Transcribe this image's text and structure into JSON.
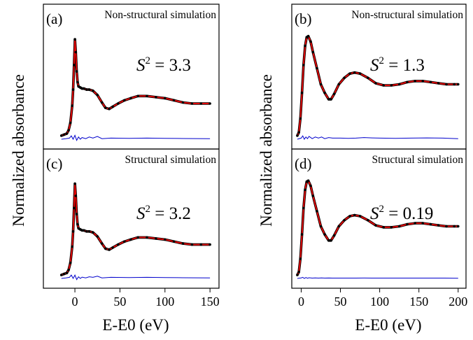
{
  "figure": {
    "ylabel": "Normalized absorbance",
    "xlabel": "E-E0 (eV)"
  },
  "colors": {
    "experiment": "#000000",
    "fit": "#e00000",
    "residual": "#0000cc",
    "axes": "#000000"
  },
  "chart_data": [
    {
      "type": "line",
      "panel_label": "(a)",
      "title": "Non-structural simulation",
      "annotation": {
        "symbol": "S",
        "superscript": "2",
        "text": " = 3.3"
      },
      "xlim": [
        -35,
        160
      ],
      "ylim": [
        0,
        1
      ],
      "xticks": [
        0,
        50,
        100,
        150
      ],
      "series": [
        {
          "style": "dots",
          "x": [
            -15,
            -12,
            -9,
            -7,
            -5,
            -3,
            -2,
            -1,
            0,
            1,
            2,
            3,
            4,
            6,
            8,
            10,
            13,
            16,
            20,
            25,
            30,
            34,
            38,
            42,
            48,
            55,
            62,
            70,
            80,
            90,
            100,
            110,
            120,
            130,
            140,
            150
          ],
          "y": [
            0.02,
            0.03,
            0.04,
            0.07,
            0.14,
            0.3,
            0.45,
            0.68,
            0.92,
            0.8,
            0.62,
            0.52,
            0.48,
            0.47,
            0.46,
            0.46,
            0.45,
            0.45,
            0.44,
            0.4,
            0.33,
            0.28,
            0.27,
            0.29,
            0.32,
            0.35,
            0.37,
            0.39,
            0.39,
            0.38,
            0.37,
            0.35,
            0.33,
            0.32,
            0.32,
            0.32
          ]
        },
        {
          "style": "line",
          "x": [
            -15,
            -12,
            -9,
            -7,
            -5,
            -3,
            -2,
            -1,
            0,
            1,
            2,
            3,
            4,
            6,
            8,
            10,
            13,
            16,
            20,
            25,
            30,
            34,
            38,
            42,
            48,
            55,
            62,
            70,
            80,
            90,
            100,
            110,
            120,
            130,
            140,
            150
          ],
          "y": [
            0.02,
            0.03,
            0.04,
            0.07,
            0.14,
            0.3,
            0.45,
            0.68,
            0.92,
            0.8,
            0.62,
            0.52,
            0.48,
            0.47,
            0.46,
            0.46,
            0.45,
            0.45,
            0.44,
            0.4,
            0.33,
            0.28,
            0.27,
            0.29,
            0.32,
            0.35,
            0.37,
            0.39,
            0.39,
            0.38,
            0.37,
            0.35,
            0.33,
            0.32,
            0.32,
            0.32
          ]
        },
        {
          "style": "residual",
          "x": [
            -15,
            -10,
            -6,
            -4,
            -2,
            0,
            2,
            4,
            6,
            8,
            12,
            16,
            20,
            25,
            30,
            40,
            60,
            80,
            100,
            120,
            150
          ],
          "y": [
            0.0,
            0.005,
            0.01,
            0.03,
            0.0,
            0.035,
            -0.01,
            0.02,
            0.0,
            0.015,
            0.005,
            0.02,
            0.01,
            0.025,
            0.005,
            0.01,
            0.008,
            0.01,
            0.008,
            0.006,
            0.005
          ]
        }
      ]
    },
    {
      "type": "line",
      "panel_label": "(b)",
      "title": "Non-structural simulation",
      "annotation": {
        "symbol": "S",
        "superscript": "2",
        "text": " = 1.3"
      },
      "xlim": [
        -12,
        210
      ],
      "ylim": [
        0,
        1
      ],
      "xticks": [
        0,
        50,
        100,
        150,
        200
      ],
      "series": [
        {
          "style": "dots",
          "x": [
            -5,
            -3,
            -1,
            1,
            3,
            5,
            7,
            9,
            12,
            15,
            20,
            25,
            30,
            35,
            38,
            42,
            48,
            55,
            62,
            68,
            75,
            85,
            95,
            105,
            115,
            125,
            135,
            145,
            155,
            165,
            175,
            185,
            195,
            200
          ],
          "y": [
            0.02,
            0.05,
            0.18,
            0.42,
            0.68,
            0.86,
            0.94,
            0.95,
            0.9,
            0.8,
            0.65,
            0.5,
            0.42,
            0.36,
            0.36,
            0.41,
            0.5,
            0.56,
            0.6,
            0.61,
            0.6,
            0.56,
            0.51,
            0.49,
            0.49,
            0.5,
            0.52,
            0.53,
            0.53,
            0.52,
            0.51,
            0.5,
            0.5,
            0.5
          ]
        },
        {
          "style": "line",
          "x": [
            -5,
            -3,
            -1,
            1,
            3,
            5,
            7,
            9,
            12,
            15,
            20,
            25,
            30,
            35,
            38,
            42,
            48,
            55,
            62,
            68,
            75,
            85,
            95,
            105,
            115,
            125,
            135,
            145,
            155,
            165,
            175,
            185,
            195,
            200
          ],
          "y": [
            0.02,
            0.05,
            0.18,
            0.42,
            0.68,
            0.86,
            0.94,
            0.95,
            0.9,
            0.8,
            0.65,
            0.5,
            0.42,
            0.36,
            0.36,
            0.41,
            0.5,
            0.56,
            0.6,
            0.61,
            0.6,
            0.56,
            0.51,
            0.49,
            0.49,
            0.5,
            0.52,
            0.53,
            0.53,
            0.52,
            0.51,
            0.5,
            0.5,
            0.5
          ]
        },
        {
          "style": "residual",
          "x": [
            -5,
            0,
            2,
            4,
            6,
            8,
            10,
            14,
            18,
            22,
            26,
            30,
            35,
            40,
            50,
            60,
            70,
            80,
            90,
            100,
            120,
            140,
            160,
            180,
            200
          ],
          "y": [
            0.0,
            0.01,
            0.03,
            0.0,
            0.02,
            0.005,
            0.025,
            0.005,
            0.02,
            0.01,
            0.02,
            0.005,
            0.015,
            0.01,
            0.01,
            0.008,
            0.01,
            0.015,
            0.012,
            0.01,
            0.008,
            0.01,
            0.012,
            0.01,
            0.005
          ]
        }
      ]
    },
    {
      "type": "line",
      "panel_label": "(c)",
      "title": "Structural simulation",
      "annotation": {
        "symbol": "S",
        "superscript": "2",
        "text": " = 3.2"
      },
      "xlim": [
        -35,
        160
      ],
      "ylim": [
        0,
        1
      ],
      "xticks": [
        0,
        50,
        100,
        150
      ],
      "series": [
        {
          "style": "dots",
          "x": [
            -15,
            -12,
            -9,
            -7,
            -5,
            -3,
            -2,
            -1,
            0,
            1,
            2,
            3,
            4,
            6,
            8,
            10,
            13,
            16,
            20,
            25,
            30,
            34,
            38,
            42,
            48,
            55,
            62,
            70,
            80,
            90,
            100,
            110,
            120,
            130,
            140,
            150
          ],
          "y": [
            0.02,
            0.03,
            0.04,
            0.07,
            0.14,
            0.3,
            0.45,
            0.68,
            0.92,
            0.8,
            0.62,
            0.52,
            0.48,
            0.47,
            0.46,
            0.46,
            0.45,
            0.45,
            0.44,
            0.4,
            0.33,
            0.28,
            0.27,
            0.29,
            0.32,
            0.35,
            0.37,
            0.39,
            0.39,
            0.38,
            0.37,
            0.35,
            0.33,
            0.32,
            0.32,
            0.32
          ]
        },
        {
          "style": "line",
          "x": [
            -15,
            -12,
            -9,
            -7,
            -5,
            -3,
            -2,
            -1,
            0,
            1,
            2,
            3,
            4,
            6,
            8,
            10,
            13,
            16,
            20,
            25,
            30,
            34,
            38,
            42,
            48,
            55,
            62,
            70,
            80,
            90,
            100,
            110,
            120,
            130,
            140,
            150
          ],
          "y": [
            0.02,
            0.03,
            0.04,
            0.07,
            0.14,
            0.3,
            0.45,
            0.68,
            0.92,
            0.8,
            0.62,
            0.52,
            0.48,
            0.47,
            0.46,
            0.46,
            0.45,
            0.45,
            0.44,
            0.4,
            0.33,
            0.28,
            0.27,
            0.29,
            0.32,
            0.35,
            0.37,
            0.39,
            0.39,
            0.38,
            0.37,
            0.35,
            0.33,
            0.32,
            0.32,
            0.32
          ]
        },
        {
          "style": "residual",
          "x": [
            -15,
            -10,
            -6,
            -4,
            -2,
            0,
            2,
            4,
            6,
            8,
            12,
            16,
            20,
            25,
            30,
            40,
            60,
            80,
            100,
            120,
            150
          ],
          "y": [
            0.0,
            0.005,
            0.01,
            0.03,
            0.0,
            0.03,
            -0.01,
            0.015,
            0.0,
            0.012,
            0.005,
            0.015,
            0.01,
            0.02,
            0.005,
            0.01,
            0.008,
            0.01,
            0.008,
            0.006,
            0.005
          ]
        }
      ]
    },
    {
      "type": "line",
      "panel_label": "(d)",
      "title": "Structural simulation",
      "annotation": {
        "symbol": "S",
        "superscript": "2",
        "text": " = 0.19"
      },
      "xlim": [
        -12,
        210
      ],
      "ylim": [
        0,
        1
      ],
      "xticks": [
        0,
        50,
        100,
        150,
        200
      ],
      "series": [
        {
          "style": "dots",
          "x": [
            -5,
            -3,
            -1,
            1,
            3,
            5,
            7,
            9,
            12,
            15,
            20,
            25,
            30,
            35,
            38,
            42,
            48,
            55,
            62,
            68,
            75,
            85,
            95,
            105,
            115,
            125,
            135,
            145,
            155,
            165,
            175,
            185,
            195,
            200
          ],
          "y": [
            0.02,
            0.05,
            0.18,
            0.42,
            0.68,
            0.86,
            0.94,
            0.95,
            0.9,
            0.8,
            0.65,
            0.5,
            0.42,
            0.36,
            0.36,
            0.41,
            0.5,
            0.56,
            0.6,
            0.61,
            0.6,
            0.56,
            0.51,
            0.49,
            0.49,
            0.5,
            0.52,
            0.53,
            0.53,
            0.52,
            0.51,
            0.5,
            0.5,
            0.5
          ]
        },
        {
          "style": "line",
          "x": [
            -5,
            -3,
            -1,
            1,
            3,
            5,
            7,
            9,
            12,
            15,
            20,
            25,
            30,
            35,
            38,
            42,
            48,
            55,
            62,
            68,
            75,
            85,
            95,
            105,
            115,
            125,
            135,
            145,
            155,
            165,
            175,
            185,
            195,
            200
          ],
          "y": [
            0.02,
            0.05,
            0.18,
            0.42,
            0.68,
            0.86,
            0.94,
            0.95,
            0.9,
            0.8,
            0.65,
            0.5,
            0.42,
            0.36,
            0.36,
            0.41,
            0.5,
            0.56,
            0.6,
            0.61,
            0.6,
            0.56,
            0.51,
            0.49,
            0.49,
            0.5,
            0.52,
            0.53,
            0.53,
            0.52,
            0.51,
            0.5,
            0.5,
            0.5
          ]
        },
        {
          "style": "residual",
          "x": [
            -5,
            0,
            2,
            4,
            6,
            8,
            10,
            14,
            18,
            22,
            26,
            30,
            35,
            40,
            50,
            60,
            70,
            80,
            90,
            100,
            120,
            140,
            160,
            180,
            200
          ],
          "y": [
            0.0,
            0.005,
            0.01,
            0.0,
            0.008,
            0.002,
            0.006,
            0.003,
            0.005,
            0.003,
            0.005,
            0.003,
            0.004,
            0.003,
            0.003,
            0.003,
            0.003,
            0.004,
            0.003,
            0.003,
            0.003,
            0.003,
            0.003,
            0.003,
            0.002
          ]
        }
      ]
    }
  ]
}
